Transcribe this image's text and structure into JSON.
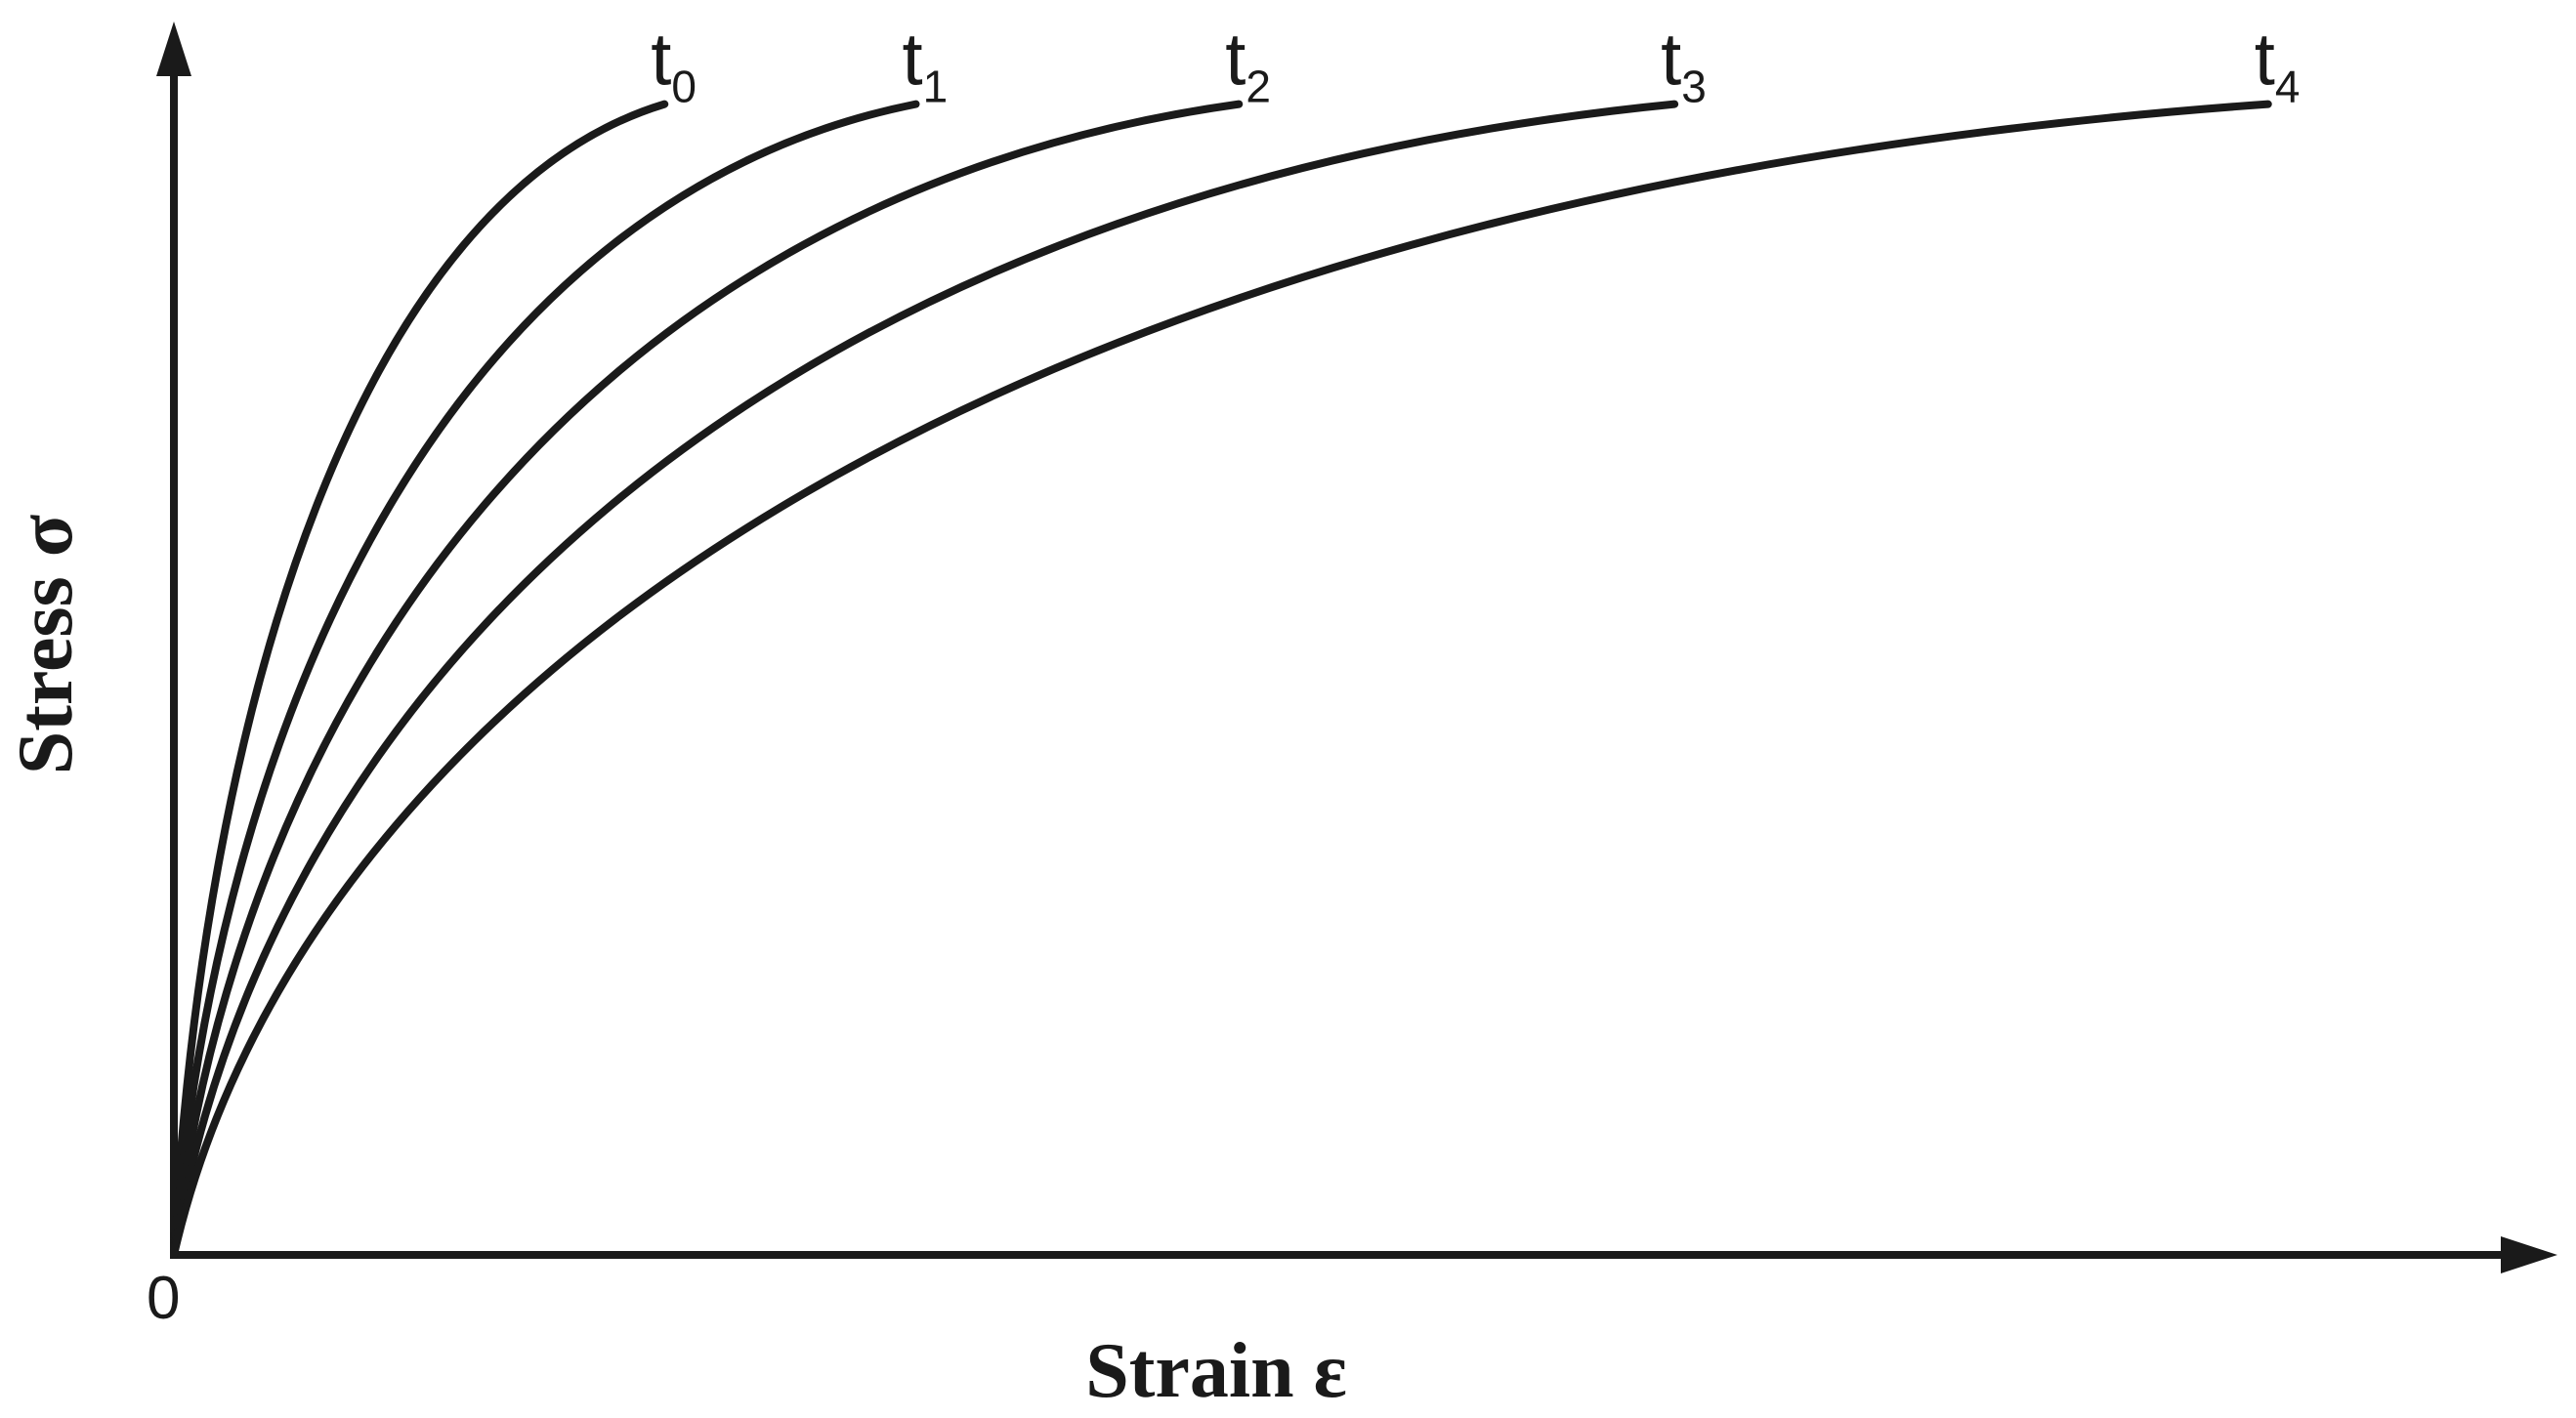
{
  "chart_data": {
    "type": "line",
    "title": "",
    "xlabel": "Strain ε",
    "ylabel": "Stress σ",
    "origin_label": "0",
    "grid": false,
    "x_ticks": false,
    "y_ticks": false,
    "xlim": [
      0,
      1
    ],
    "ylim": [
      0,
      1
    ],
    "curve_color": "#1a1a1a",
    "series": [
      {
        "label_base": "t",
        "label_sub": "0",
        "end_x": 0.205,
        "end_y": 0.933
      },
      {
        "label_base": "t",
        "label_sub": "1",
        "end_x": 0.31,
        "end_y": 0.933
      },
      {
        "label_base": "t",
        "label_sub": "2",
        "end_x": 0.445,
        "end_y": 0.933
      },
      {
        "label_base": "t",
        "label_sub": "3",
        "end_x": 0.627,
        "end_y": 0.933
      },
      {
        "label_base": "t",
        "label_sub": "4",
        "end_x": 0.875,
        "end_y": 0.933
      }
    ]
  }
}
